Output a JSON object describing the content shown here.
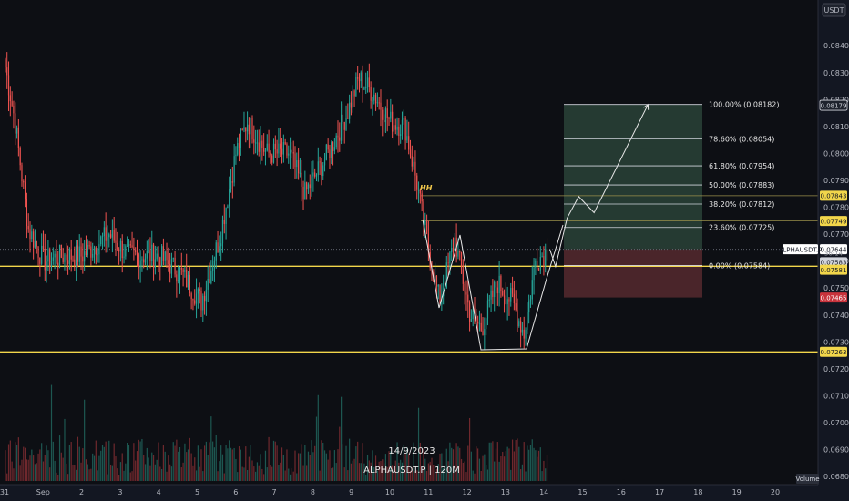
{
  "currency": "USDT",
  "watermark": {
    "date": "14/9/2023",
    "symbol_line": "ALPHAUSDT.P | 120M"
  },
  "colors": {
    "up": "#26a69a",
    "down": "#ef5350",
    "level_line": "#f2d64b",
    "fib_line": "#d1d4dc",
    "target_zone": "#2e4a3c",
    "stop_zone": "#5a2a30",
    "background": "#131722"
  },
  "chart_data": {
    "type": "candlestick",
    "symbol": "ALPHAUSDT.P",
    "ylim": [
      0.0677,
      0.0857
    ],
    "y_ticks": [
      "0.08400",
      "0.08300",
      "0.08200",
      "0.08100",
      "0.08000",
      "0.07900",
      "0.07800",
      "0.07700",
      "0.07600",
      "0.07500",
      "0.07400",
      "0.07300",
      "0.07200",
      "0.07100",
      "0.07000",
      "0.06900",
      "0.06800"
    ],
    "x_tick_labels": [
      "31",
      "Sep",
      "2",
      "3",
      "4",
      "5",
      "6",
      "7",
      "8",
      "9",
      "10",
      "11",
      "12",
      "13",
      "14",
      "15",
      "16",
      "17",
      "18",
      "19",
      "20"
    ],
    "price_tags": [
      {
        "text": "0.08179",
        "style": "box"
      },
      {
        "text": "0.07843",
        "style": "yellow"
      },
      {
        "text": "0.07749",
        "style": "yellow"
      },
      {
        "text": "0.07644",
        "style": "white"
      },
      {
        "text": "36:14",
        "style": "plain"
      },
      {
        "text": "0.07583",
        "style": "gray"
      },
      {
        "text": "0.07581",
        "style": "yellow"
      },
      {
        "text": "0.07465",
        "style": "red"
      },
      {
        "text": "0.07263",
        "style": "yellow"
      }
    ],
    "symbol_tag": "ALPHAUSDT.P",
    "volume_label": "Volume",
    "fib_levels": [
      {
        "label": "100.00% (0.08182)",
        "price": 0.08182
      },
      {
        "label": "78.60% (0.08054)",
        "price": 0.08054
      },
      {
        "label": "61.80% (0.07954)",
        "price": 0.07954
      },
      {
        "label": "50.00% (0.07883)",
        "price": 0.07883
      },
      {
        "label": "38.20% (0.07812)",
        "price": 0.07812
      },
      {
        "label": "23.60% (0.07725)",
        "price": 0.07725
      },
      {
        "label": "0.00% (0.07584)",
        "price": 0.07584
      }
    ],
    "horizontal_levels": [
      0.07581,
      0.07263
    ],
    "resistance_levels": [
      0.07843,
      0.07749
    ],
    "last_price": 0.07644,
    "stop_level": 0.07465,
    "annotation": "HH",
    "key_prices": [
      {
        "x": 0.0,
        "price": 0.0832
      },
      {
        "x": 0.25,
        "price": 0.0812
      },
      {
        "x": 0.6,
        "price": 0.0772
      },
      {
        "x": 1.0,
        "price": 0.076
      },
      {
        "x": 1.5,
        "price": 0.0762
      },
      {
        "x": 2.0,
        "price": 0.0762
      },
      {
        "x": 2.7,
        "price": 0.077
      },
      {
        "x": 3.2,
        "price": 0.0762
      },
      {
        "x": 4.0,
        "price": 0.0762
      },
      {
        "x": 4.6,
        "price": 0.0755
      },
      {
        "x": 5.1,
        "price": 0.0745
      },
      {
        "x": 5.6,
        "price": 0.077
      },
      {
        "x": 6.0,
        "price": 0.08
      },
      {
        "x": 6.3,
        "price": 0.0812
      },
      {
        "x": 6.8,
        "price": 0.08
      },
      {
        "x": 7.4,
        "price": 0.08
      },
      {
        "x": 7.8,
        "price": 0.0785
      },
      {
        "x": 8.4,
        "price": 0.08
      },
      {
        "x": 8.9,
        "price": 0.0815
      },
      {
        "x": 9.2,
        "price": 0.0828
      },
      {
        "x": 9.6,
        "price": 0.0822
      },
      {
        "x": 10.0,
        "price": 0.0812
      },
      {
        "x": 10.4,
        "price": 0.081
      },
      {
        "x": 10.7,
        "price": 0.079
      },
      {
        "x": 11.0,
        "price": 0.0765
      },
      {
        "x": 11.3,
        "price": 0.0745
      },
      {
        "x": 11.7,
        "price": 0.0768
      },
      {
        "x": 12.1,
        "price": 0.074
      },
      {
        "x": 12.4,
        "price": 0.0735
      },
      {
        "x": 12.8,
        "price": 0.0752
      },
      {
        "x": 13.2,
        "price": 0.0745
      },
      {
        "x": 13.5,
        "price": 0.0733
      },
      {
        "x": 13.8,
        "price": 0.076
      },
      {
        "x": 14.1,
        "price": 0.0764
      }
    ],
    "projection_path": [
      {
        "x": 14.15,
        "price": 0.07644
      },
      {
        "x": 14.3,
        "price": 0.0758
      },
      {
        "x": 14.6,
        "price": 0.0776
      },
      {
        "x": 14.9,
        "price": 0.0784
      },
      {
        "x": 15.3,
        "price": 0.0778
      },
      {
        "x": 16.7,
        "price": 0.08182
      }
    ]
  }
}
